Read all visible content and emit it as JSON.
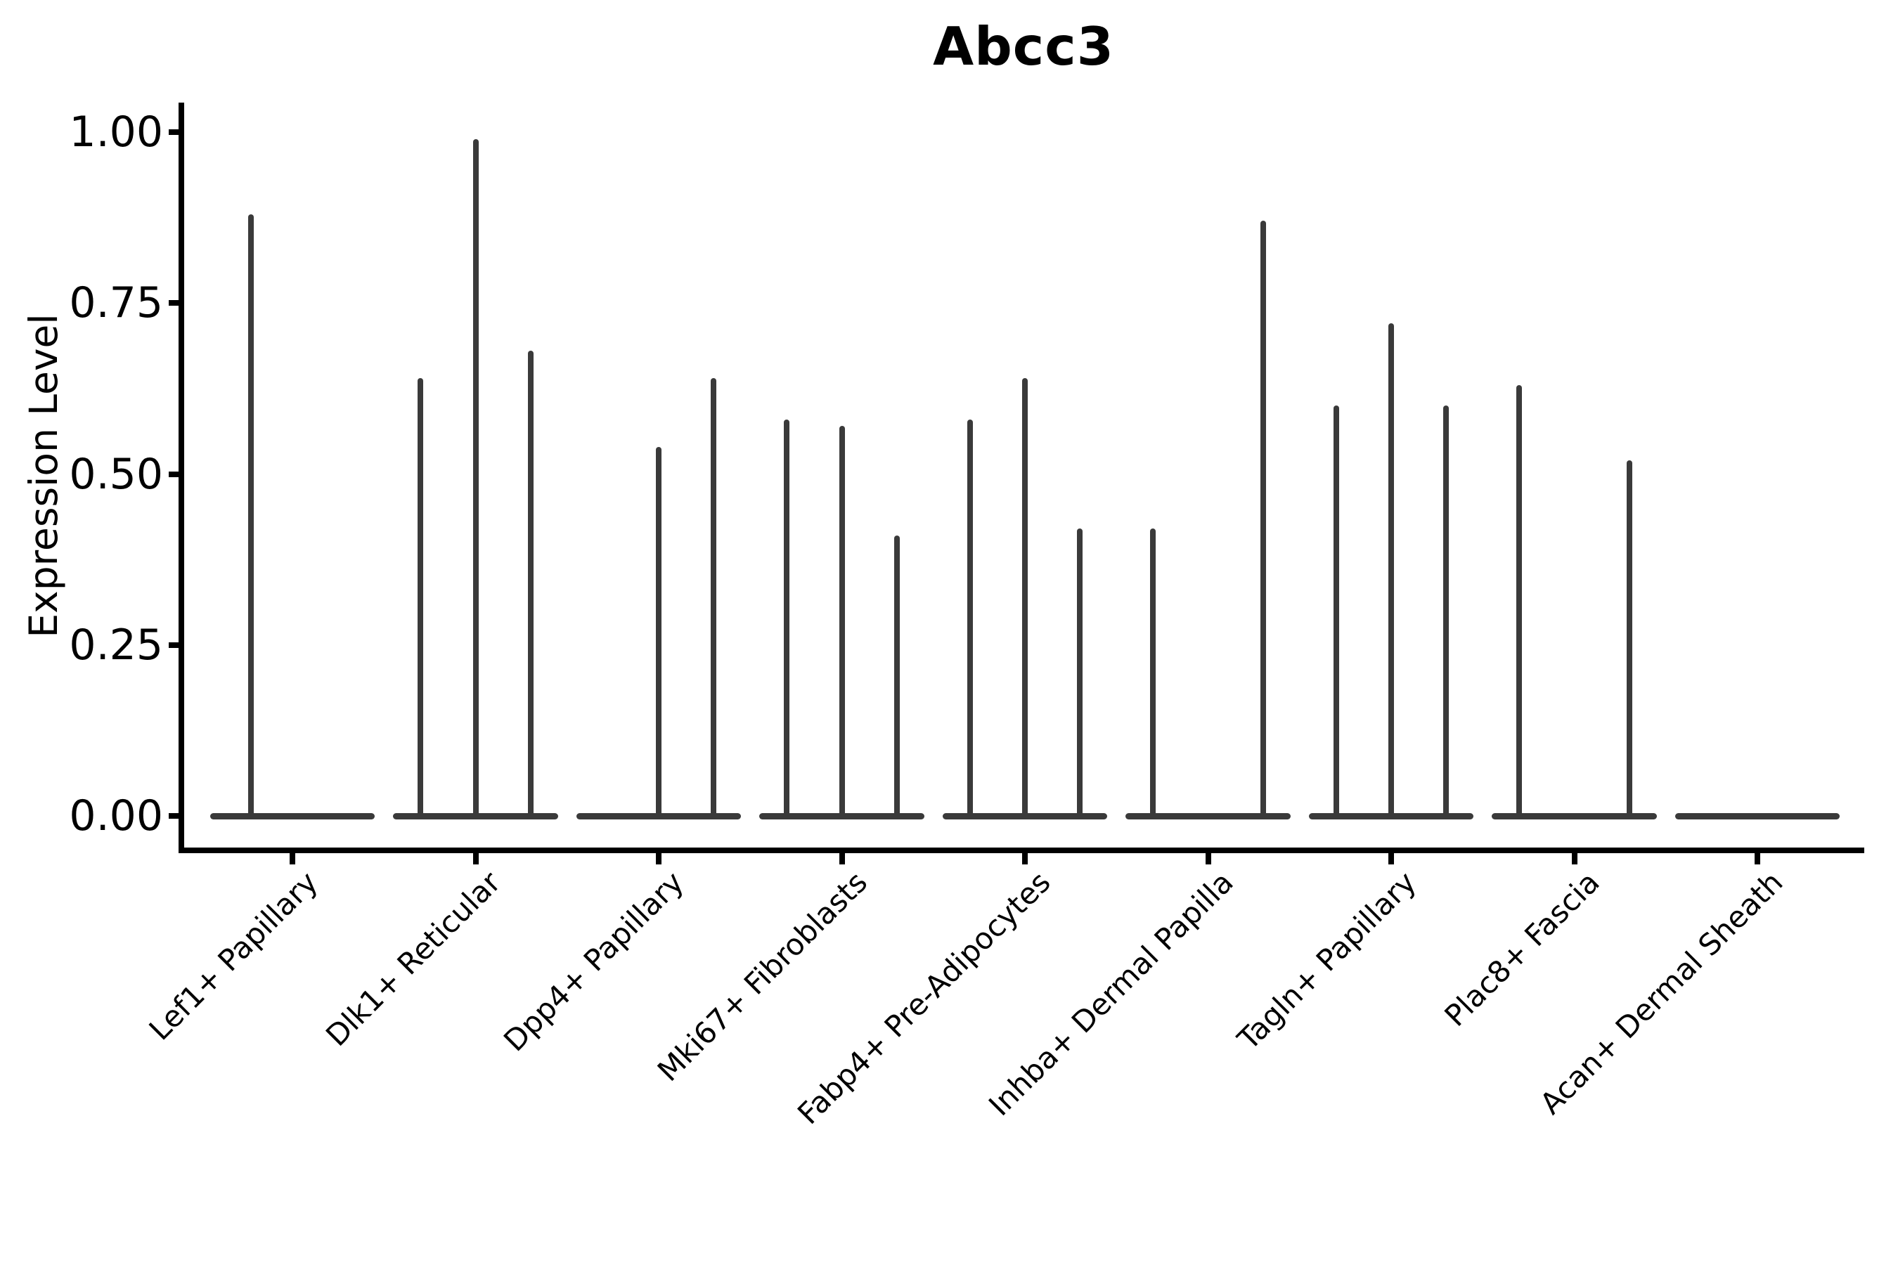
{
  "title": "Abcc3",
  "y_axis": {
    "label": "Expression Level"
  },
  "colors": {
    "violin": "#3a3a3a",
    "axis": "#000000",
    "text": "#000000",
    "background": "#ffffff"
  },
  "chart_data": {
    "type": "violin",
    "title": "Abcc3",
    "xlabel": "",
    "ylabel": "Expression Level",
    "ylim": [
      -0.05,
      1.04
    ],
    "yticks": [
      0,
      0.25,
      0.5,
      0.75,
      1.0
    ],
    "ytick_labels": [
      "0.00",
      "0.25",
      "0.50",
      "0.75",
      "1.00"
    ],
    "x_rotation_deg": 45,
    "grid": false,
    "legend": "none",
    "categories": [
      "Lef1+ Papillary",
      "Dlk1+ Reticular",
      "Dpp4+ Papillary",
      "Mki67+ Fibroblasts",
      "Fabp4+ Pre-Adipocytes",
      "Inhba+ Dermal Papilla",
      "Tagln+ Papillary",
      "Plac8+ Fascia",
      "Acan+ Dermal Sheath"
    ],
    "groups": [
      {
        "label": "Lef1+ Papillary",
        "baseline_width": 0.9,
        "violins": [
          {
            "offset": -0.225,
            "max": 0.88
          }
        ]
      },
      {
        "label": "Dlk1+ Reticular",
        "baseline_width": 0.9,
        "violins": [
          {
            "offset": -0.3,
            "max": 0.64
          },
          {
            "offset": 0,
            "max": 0.99
          },
          {
            "offset": 0.3,
            "max": 0.68
          }
        ]
      },
      {
        "label": "Dpp4+ Papillary",
        "baseline_width": 0.9,
        "violins": [
          {
            "offset": 0,
            "max": 0.54
          },
          {
            "offset": 0.3,
            "max": 0.64
          }
        ]
      },
      {
        "label": "Mki67+ Fibroblasts",
        "baseline_width": 0.9,
        "violins": [
          {
            "offset": -0.3,
            "max": 0.58
          },
          {
            "offset": 0,
            "max": 0.57
          },
          {
            "offset": 0.3,
            "max": 0.41
          }
        ]
      },
      {
        "label": "Fabp4+ Pre-Adipocytes",
        "baseline_width": 0.9,
        "violins": [
          {
            "offset": -0.3,
            "max": 0.58
          },
          {
            "offset": 0,
            "max": 0.64
          },
          {
            "offset": 0.3,
            "max": 0.42
          }
        ]
      },
      {
        "label": "Inhba+ Dermal Papilla",
        "baseline_width": 0.9,
        "violins": [
          {
            "offset": -0.3,
            "max": 0.42
          },
          {
            "offset": 0.3,
            "max": 0.87
          }
        ]
      },
      {
        "label": "Tagln+ Papillary",
        "baseline_width": 0.9,
        "violins": [
          {
            "offset": -0.3,
            "max": 0.6
          },
          {
            "offset": 0,
            "max": 0.72
          },
          {
            "offset": 0.3,
            "max": 0.6
          }
        ]
      },
      {
        "label": "Plac8+ Fascia",
        "baseline_width": 0.9,
        "violins": [
          {
            "offset": -0.3,
            "max": 0.63
          },
          {
            "offset": 0.3,
            "max": 0.52
          }
        ]
      },
      {
        "label": "Acan+ Dermal Sheath",
        "baseline_width": 0.9,
        "violins": []
      }
    ],
    "note": "violins are collapsed to near-zero width: each renders as a flat gray base at y=0 plus a thin vertical spike reaching its maximum expression value"
  }
}
